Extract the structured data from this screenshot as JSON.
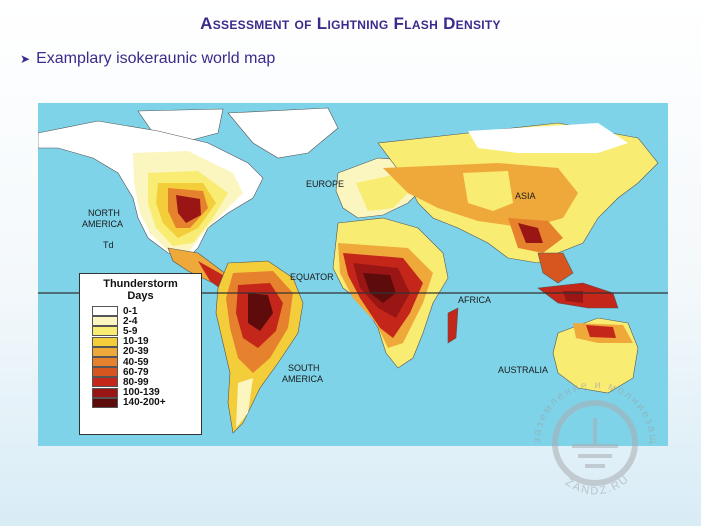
{
  "title": "Assessment of Lightning Flash Density",
  "subtitle": "Examplary isokeraunic world map",
  "map_labels": {
    "north_america": "NORTH",
    "north_america_2": "AMERICA",
    "td": "Td",
    "europe": "EUROPE",
    "asia": "ASIA",
    "equator": "EQUATOR",
    "africa": "AFRICA",
    "south_america": "SOUTH",
    "south_america_2": "AMERICA",
    "australia": "AUSTRALIA"
  },
  "legend": {
    "title_line1": "Thunderstorm",
    "title_line2": "Days",
    "items": [
      {
        "label": "0-1",
        "color": "#ffffff"
      },
      {
        "label": "2-4",
        "color": "#fbf5c0"
      },
      {
        "label": "5-9",
        "color": "#f8ec72"
      },
      {
        "label": "10-19",
        "color": "#f3cd3a"
      },
      {
        "label": "20-39",
        "color": "#efa83a"
      },
      {
        "label": "40-59",
        "color": "#e6822e"
      },
      {
        "label": "60-79",
        "color": "#d7561f"
      },
      {
        "label": "80-99",
        "color": "#c4261a"
      },
      {
        "label": "100-139",
        "color": "#9a1614"
      },
      {
        "label": "140-200+",
        "color": "#5e0c0b"
      }
    ]
  },
  "watermark": {
    "text_top": "заземление и молниезащита",
    "text_bottom": "ZANDZ.RU"
  },
  "colors": {
    "ocean": "#7fd3e8",
    "title": "#3a2a8c"
  }
}
